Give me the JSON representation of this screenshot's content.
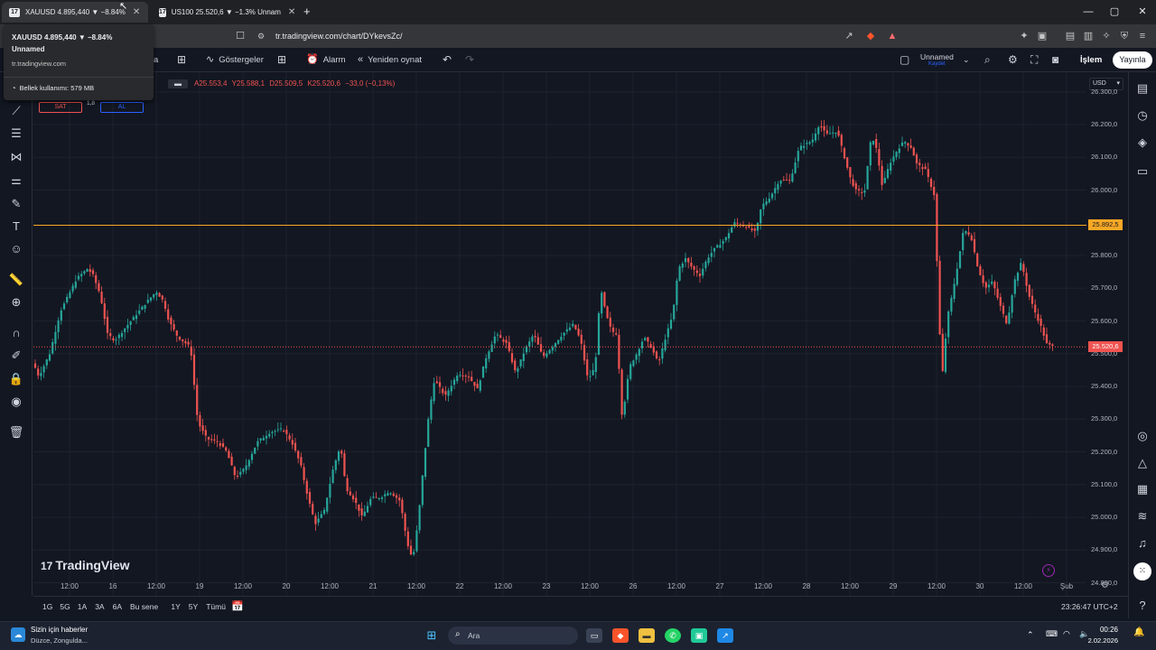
{
  "browser": {
    "tabs": [
      {
        "label": "XAUUSD 4.895,440 ▼ −8.84%",
        "active": true
      },
      {
        "label": "US100 25.520,6 ▼ −1.3% Unnam",
        "active": false
      }
    ],
    "new_tab": "+",
    "url": "tr.tradingview.com/chart/DYkevsZc/",
    "window": {
      "minimize": "—",
      "maximize": "▢",
      "close": "✕"
    }
  },
  "tab_popup": {
    "title_line1": "XAUUSD 4.895,440 ▼ −8.84%",
    "title_line2": "Unnamed",
    "domain": "tr.tradingview.com",
    "memory": "Bellek kullanımı: 579 MB"
  },
  "tv_toolbar": {
    "interval_fragment": "a",
    "indicators": "Göstergeler",
    "alarm": "Alarm",
    "replay": "Yeniden oynat",
    "layout_name": "Unnamed",
    "layout_status": "Kaydet",
    "trade": "İşlem",
    "publish": "Yayınla"
  },
  "legend": {
    "symbol_fragment": "m",
    "open": "A25.553,4",
    "high": "Y25.588,1",
    "low": "D25.509,5",
    "close": "K25.520,6",
    "change": "−33,0 (−0,13%)",
    "sell": "SAT",
    "spread": "1,8",
    "buy": "AL"
  },
  "watermark": "TradingView",
  "price_axis": {
    "currency": "USD",
    "ticks": [
      "26.300,0",
      "26.200,0",
      "26.100,0",
      "26.000,0",
      "25.800,0",
      "25.700,0",
      "25.600,0",
      "25.500,0",
      "25.400,0",
      "25.300,0",
      "25.200,0",
      "25.100,0",
      "25.000,0",
      "24.900,0",
      "24.800,0"
    ],
    "horizontal_line_label": "25.892,5",
    "last_price_label": "25.520,6"
  },
  "time_axis": [
    "12:00",
    "16",
    "12:00",
    "19",
    "12:00",
    "20",
    "12:00",
    "21",
    "12:00",
    "22",
    "12:00",
    "23",
    "12:00",
    "26",
    "12:00",
    "27",
    "12:00",
    "28",
    "12:00",
    "29",
    "12:00",
    "30",
    "12:00",
    "Şub"
  ],
  "range_bar": {
    "ranges": [
      "1G",
      "5G",
      "1A",
      "3A",
      "6A",
      "Bu sene",
      "1Y",
      "5Y",
      "Tümü"
    ],
    "clock": "23:26:47 UTC+2"
  },
  "taskbar": {
    "news_title": "Sizin için haberler",
    "news_sub": "Düzce, Zongulda...",
    "search": "Ara",
    "time": "00:26",
    "date": "2.02.2026"
  },
  "chart_data": {
    "type": "candlestick",
    "y_range": [
      24760,
      26360
    ],
    "horizontal_line": 25892.5,
    "last_price": 25520.6,
    "up_color": "#26a69a",
    "down_color": "#ef5350",
    "path": [
      [
        0,
        25470
      ],
      [
        6,
        25430
      ],
      [
        18,
        25500
      ],
      [
        30,
        25630
      ],
      [
        48,
        25730
      ],
      [
        60,
        25760
      ],
      [
        66,
        25740
      ],
      [
        74,
        25680
      ],
      [
        82,
        25560
      ],
      [
        90,
        25540
      ],
      [
        108,
        25600
      ],
      [
        126,
        25660
      ],
      [
        136,
        25690
      ],
      [
        144,
        25660
      ],
      [
        150,
        25600
      ],
      [
        160,
        25550
      ],
      [
        174,
        25520
      ],
      [
        182,
        25290
      ],
      [
        192,
        25240
      ],
      [
        204,
        25230
      ],
      [
        214,
        25200
      ],
      [
        224,
        25120
      ],
      [
        234,
        25150
      ],
      [
        248,
        25230
      ],
      [
        262,
        25260
      ],
      [
        276,
        25270
      ],
      [
        286,
        25230
      ],
      [
        296,
        25160
      ],
      [
        304,
        25060
      ],
      [
        312,
        24980
      ],
      [
        322,
        25020
      ],
      [
        332,
        25150
      ],
      [
        340,
        25220
      ],
      [
        346,
        25090
      ],
      [
        356,
        25050
      ],
      [
        364,
        25000
      ],
      [
        374,
        25060
      ],
      [
        384,
        25060
      ],
      [
        394,
        25080
      ],
      [
        406,
        25050
      ],
      [
        414,
        24920
      ],
      [
        420,
        24870
      ],
      [
        426,
        24990
      ],
      [
        432,
        25160
      ],
      [
        438,
        25320
      ],
      [
        444,
        25420
      ],
      [
        456,
        25370
      ],
      [
        470,
        25440
      ],
      [
        482,
        25430
      ],
      [
        492,
        25390
      ],
      [
        500,
        25480
      ],
      [
        512,
        25560
      ],
      [
        524,
        25530
      ],
      [
        534,
        25440
      ],
      [
        544,
        25510
      ],
      [
        554,
        25560
      ],
      [
        564,
        25490
      ],
      [
        574,
        25520
      ],
      [
        586,
        25560
      ],
      [
        598,
        25590
      ],
      [
        606,
        25540
      ],
      [
        614,
        25420
      ],
      [
        622,
        25460
      ],
      [
        628,
        25700
      ],
      [
        634,
        25620
      ],
      [
        640,
        25570
      ],
      [
        646,
        25560
      ],
      [
        652,
        25300
      ],
      [
        660,
        25460
      ],
      [
        668,
        25500
      ],
      [
        676,
        25550
      ],
      [
        684,
        25520
      ],
      [
        692,
        25470
      ],
      [
        700,
        25550
      ],
      [
        708,
        25620
      ],
      [
        714,
        25760
      ],
      [
        722,
        25790
      ],
      [
        730,
        25760
      ],
      [
        738,
        25740
      ],
      [
        746,
        25790
      ],
      [
        754,
        25820
      ],
      [
        766,
        25850
      ],
      [
        776,
        25900
      ],
      [
        788,
        25890
      ],
      [
        800,
        25870
      ],
      [
        806,
        25950
      ],
      [
        816,
        25980
      ],
      [
        826,
        26030
      ],
      [
        838,
        26030
      ],
      [
        848,
        26130
      ],
      [
        862,
        26150
      ],
      [
        870,
        26200
      ],
      [
        878,
        26170
      ],
      [
        890,
        26180
      ],
      [
        898,
        26100
      ],
      [
        904,
        26040
      ],
      [
        910,
        26000
      ],
      [
        920,
        25990
      ],
      [
        928,
        26170
      ],
      [
        934,
        26120
      ],
      [
        940,
        26010
      ],
      [
        948,
        26080
      ],
      [
        956,
        26120
      ],
      [
        964,
        26150
      ],
      [
        972,
        26130
      ],
      [
        978,
        26080
      ],
      [
        988,
        26060
      ],
      [
        998,
        25980
      ],
      [
        1002,
        25650
      ],
      [
        1006,
        25420
      ],
      [
        1012,
        25610
      ],
      [
        1018,
        25690
      ],
      [
        1024,
        25780
      ],
      [
        1030,
        25880
      ],
      [
        1038,
        25860
      ],
      [
        1046,
        25760
      ],
      [
        1054,
        25700
      ],
      [
        1062,
        25720
      ],
      [
        1070,
        25650
      ],
      [
        1078,
        25590
      ],
      [
        1086,
        25720
      ],
      [
        1094,
        25780
      ],
      [
        1102,
        25680
      ],
      [
        1110,
        25620
      ],
      [
        1116,
        25580
      ],
      [
        1122,
        25530
      ],
      [
        1130,
        25520
      ]
    ]
  }
}
